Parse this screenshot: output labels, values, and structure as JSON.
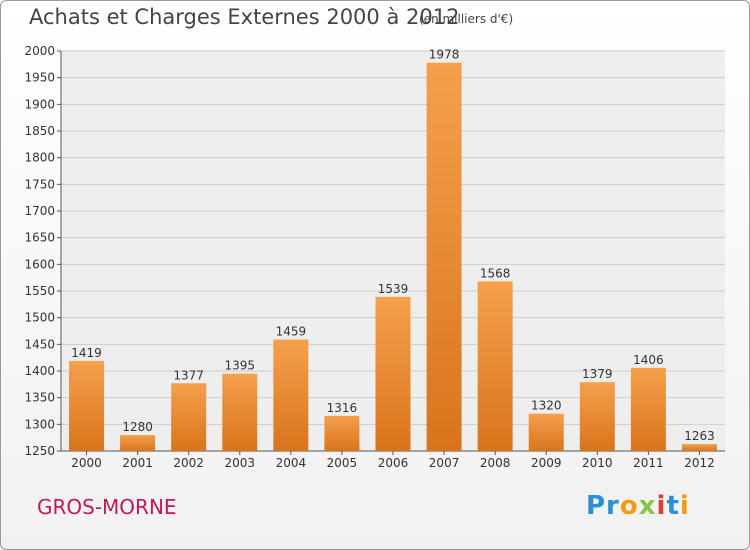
{
  "header": {
    "title": "Achats et Charges Externes 2000 à 2012",
    "unit": "(en milliers d'€)"
  },
  "footer": {
    "place": "GROS-MORNE",
    "logo": "Proxiti"
  },
  "colors": {
    "bar_light": "#f5a04c",
    "bar_dark": "#d9741c",
    "place_text": "#c2185b"
  },
  "chart_data": {
    "type": "bar",
    "title": "Achats et Charges Externes 2000 à 2012",
    "subtitle": "(en milliers d'€)",
    "xlabel": "",
    "ylabel": "",
    "categories": [
      "2000",
      "2001",
      "2002",
      "2003",
      "2004",
      "2005",
      "2006",
      "2007",
      "2008",
      "2009",
      "2010",
      "2011",
      "2012"
    ],
    "values": [
      1419,
      1280,
      1377,
      1395,
      1459,
      1316,
      1539,
      1978,
      1568,
      1320,
      1379,
      1406,
      1263
    ],
    "data_labels": [
      "1419",
      "1280",
      "1377",
      "1395",
      "1459",
      "1316",
      "1539",
      "1978",
      "1568",
      "1320",
      "1379",
      "1406",
      "1263"
    ],
    "ylim": [
      1250,
      2000
    ],
    "yticks": [
      "1250",
      "1300",
      "1350",
      "1400",
      "1450",
      "1500",
      "1550",
      "1600",
      "1650",
      "1700",
      "1750",
      "1800",
      "1850",
      "1900",
      "1950",
      "2000"
    ],
    "grid": true,
    "legend": "none"
  }
}
